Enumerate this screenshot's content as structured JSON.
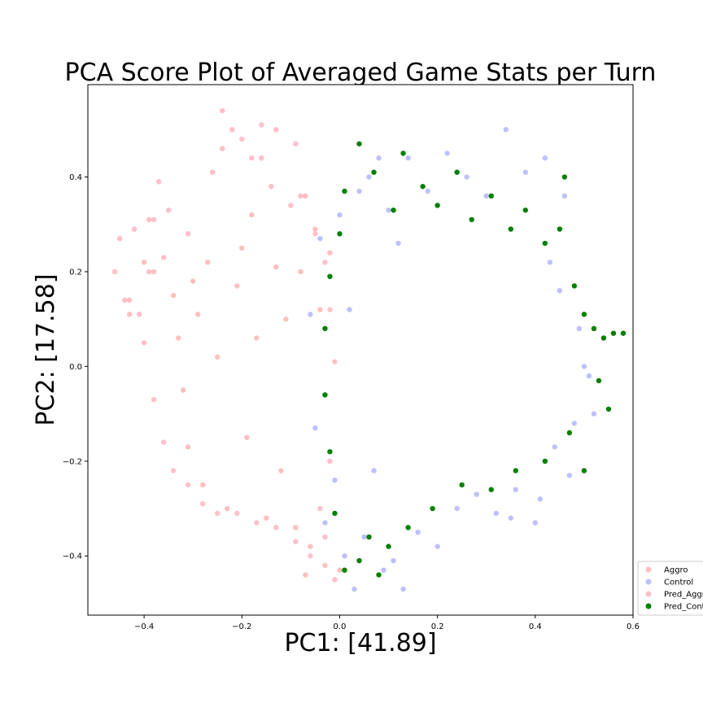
{
  "chart_data": {
    "type": "scatter",
    "title": "PCA Score Plot of Averaged Game Stats per Turn",
    "xlabel": "PC1: [41.89]",
    "ylabel": "PC2: [17.58]",
    "xlim": [
      -0.515,
      0.6
    ],
    "ylim": [
      -0.525,
      0.595
    ],
    "x_ticks": [
      -0.4,
      -0.2,
      0.0,
      0.2,
      0.4,
      0.6
    ],
    "x_tick_labels": [
      "−0.4",
      "−0.2",
      "0.0",
      "0.2",
      "0.4",
      "0.6"
    ],
    "y_ticks": [
      -0.4,
      -0.2,
      0.0,
      0.2,
      0.4
    ],
    "y_tick_labels": [
      "−0.4",
      "−0.2",
      "0.0",
      "0.2",
      "0.4"
    ],
    "grid": false,
    "legend_position": "lower-right, outside the axes",
    "series": [
      {
        "name": "Aggro",
        "color": "#ff0000",
        "alpha": 0.25,
        "points": [
          [
            -0.46,
            0.2
          ],
          [
            -0.45,
            0.27
          ],
          [
            -0.44,
            0.14
          ],
          [
            -0.43,
            0.14
          ],
          [
            -0.42,
            0.29
          ],
          [
            -0.41,
            0.11
          ],
          [
            -0.4,
            0.22
          ],
          [
            -0.39,
            0.31
          ],
          [
            -0.38,
            0.2
          ],
          [
            -0.37,
            0.39
          ],
          [
            -0.36,
            0.23
          ],
          [
            -0.35,
            0.33
          ],
          [
            -0.34,
            0.15
          ],
          [
            -0.33,
            0.06
          ],
          [
            -0.32,
            -0.05
          ],
          [
            -0.31,
            0.28
          ],
          [
            -0.31,
            -0.17
          ],
          [
            -0.3,
            0.18
          ],
          [
            -0.29,
            0.11
          ],
          [
            -0.28,
            -0.25
          ],
          [
            -0.27,
            0.22
          ],
          [
            -0.26,
            0.41
          ],
          [
            -0.25,
            0.02
          ],
          [
            -0.24,
            0.46
          ],
          [
            -0.23,
            -0.3
          ],
          [
            -0.22,
            0.5
          ],
          [
            -0.21,
            0.17
          ],
          [
            -0.2,
            0.25
          ],
          [
            -0.19,
            -0.15
          ],
          [
            -0.18,
            0.32
          ],
          [
            -0.17,
            0.06
          ],
          [
            -0.16,
            0.44
          ],
          [
            -0.15,
            -0.32
          ],
          [
            -0.14,
            0.38
          ],
          [
            -0.13,
            0.21
          ],
          [
            -0.12,
            -0.22
          ],
          [
            -0.11,
            0.1
          ],
          [
            -0.1,
            0.34
          ],
          [
            -0.09,
            -0.34
          ],
          [
            -0.08,
            0.2
          ],
          [
            -0.07,
            0.36
          ],
          [
            -0.06,
            -0.38
          ],
          [
            -0.05,
            0.29
          ],
          [
            -0.04,
            0.12
          ],
          [
            -0.03,
            -0.42
          ],
          [
            -0.02,
            0.24
          ],
          [
            -0.01,
            -0.45
          ],
          [
            0.0,
            -0.43
          ],
          [
            -0.24,
            0.54
          ],
          [
            -0.16,
            0.51
          ],
          [
            -0.13,
            0.5
          ],
          [
            -0.09,
            0.47
          ],
          [
            -0.43,
            0.11
          ],
          [
            -0.07,
            -0.44
          ]
        ]
      },
      {
        "name": "Control",
        "color": "#0000ff",
        "alpha": 0.25,
        "points": [
          [
            -0.06,
            0.11
          ],
          [
            -0.05,
            -0.13
          ],
          [
            -0.04,
            0.27
          ],
          [
            -0.03,
            -0.33
          ],
          [
            -0.02,
            0.19
          ],
          [
            -0.01,
            -0.24
          ],
          [
            0.0,
            0.32
          ],
          [
            0.01,
            -0.4
          ],
          [
            0.02,
            0.12
          ],
          [
            0.03,
            -0.47
          ],
          [
            0.04,
            0.37
          ],
          [
            0.05,
            -0.36
          ],
          [
            0.06,
            0.4
          ],
          [
            0.07,
            -0.22
          ],
          [
            0.08,
            0.44
          ],
          [
            0.09,
            -0.43
          ],
          [
            0.1,
            0.33
          ],
          [
            0.11,
            -0.41
          ],
          [
            0.12,
            0.26
          ],
          [
            0.13,
            -0.47
          ],
          [
            0.14,
            0.44
          ],
          [
            0.16,
            -0.35
          ],
          [
            0.18,
            0.37
          ],
          [
            0.2,
            -0.38
          ],
          [
            0.22,
            0.45
          ],
          [
            0.24,
            -0.3
          ],
          [
            0.26,
            0.4
          ],
          [
            0.28,
            -0.27
          ],
          [
            0.3,
            0.36
          ],
          [
            0.32,
            -0.31
          ],
          [
            0.34,
            0.5
          ],
          [
            0.36,
            -0.26
          ],
          [
            0.38,
            0.41
          ],
          [
            0.4,
            -0.33
          ],
          [
            0.42,
            0.44
          ],
          [
            0.44,
            -0.17
          ],
          [
            0.46,
            0.36
          ],
          [
            0.48,
            -0.12
          ],
          [
            0.5,
            0.0
          ],
          [
            0.52,
            -0.1
          ],
          [
            0.54,
            0.06
          ],
          [
            0.47,
            -0.23
          ],
          [
            0.43,
            0.22
          ],
          [
            0.45,
            0.16
          ],
          [
            0.49,
            0.08
          ],
          [
            0.51,
            -0.02
          ],
          [
            0.41,
            -0.28
          ],
          [
            0.35,
            -0.32
          ]
        ]
      },
      {
        "name": "Pred_Aggro",
        "color": "#ffc0cb",
        "alpha": 1,
        "points": [
          [
            -0.45,
            0.27
          ],
          [
            -0.42,
            0.29
          ],
          [
            -0.38,
            0.31
          ],
          [
            -0.37,
            0.39
          ],
          [
            -0.35,
            0.33
          ],
          [
            -0.31,
            0.28
          ],
          [
            -0.26,
            0.41
          ],
          [
            -0.24,
            0.46
          ],
          [
            -0.22,
            0.5
          ],
          [
            -0.2,
            0.48
          ],
          [
            -0.18,
            0.44
          ],
          [
            -0.16,
            0.44
          ],
          [
            -0.14,
            0.38
          ],
          [
            -0.1,
            0.34
          ],
          [
            -0.08,
            0.36
          ],
          [
            -0.39,
            0.2
          ],
          [
            -0.41,
            0.11
          ],
          [
            -0.4,
            0.05
          ],
          [
            -0.38,
            -0.07
          ],
          [
            -0.36,
            -0.16
          ],
          [
            -0.34,
            -0.22
          ],
          [
            -0.31,
            -0.25
          ],
          [
            -0.28,
            -0.29
          ],
          [
            -0.25,
            -0.31
          ],
          [
            -0.21,
            -0.31
          ],
          [
            -0.17,
            -0.33
          ],
          [
            -0.13,
            -0.34
          ],
          [
            -0.09,
            -0.37
          ],
          [
            -0.06,
            -0.4
          ],
          [
            -0.03,
            -0.36
          ],
          [
            -0.02,
            0.12
          ],
          [
            -0.03,
            0.22
          ],
          [
            -0.05,
            0.28
          ],
          [
            -0.01,
            0.01
          ],
          [
            -0.02,
            -0.2
          ],
          [
            -0.04,
            -0.3
          ],
          [
            -0.09,
            0.47
          ],
          [
            -0.13,
            0.5
          ],
          [
            -0.16,
            0.51
          ],
          [
            -0.24,
            0.54
          ],
          [
            -0.01,
            -0.45
          ],
          [
            -0.46,
            0.2
          ]
        ]
      },
      {
        "name": "Pred_Control",
        "color": "#008000",
        "alpha": 1,
        "points": [
          [
            0.01,
            0.37
          ],
          [
            0.04,
            0.47
          ],
          [
            0.07,
            0.41
          ],
          [
            0.11,
            0.33
          ],
          [
            0.13,
            0.45
          ],
          [
            0.17,
            0.38
          ],
          [
            0.2,
            0.34
          ],
          [
            0.24,
            0.41
          ],
          [
            0.27,
            0.31
          ],
          [
            0.31,
            0.36
          ],
          [
            0.35,
            0.29
          ],
          [
            0.38,
            0.33
          ],
          [
            0.42,
            0.26
          ],
          [
            0.45,
            0.29
          ],
          [
            0.46,
            0.4
          ],
          [
            0.48,
            0.17
          ],
          [
            0.5,
            0.11
          ],
          [
            0.52,
            0.08
          ],
          [
            0.54,
            0.06
          ],
          [
            0.56,
            0.07
          ],
          [
            0.58,
            0.07
          ],
          [
            0.55,
            -0.09
          ],
          [
            0.53,
            -0.03
          ],
          [
            0.5,
            -0.22
          ],
          [
            0.47,
            -0.14
          ],
          [
            0.42,
            -0.2
          ],
          [
            0.36,
            -0.22
          ],
          [
            0.31,
            -0.26
          ],
          [
            0.25,
            -0.25
          ],
          [
            0.19,
            -0.3
          ],
          [
            0.14,
            -0.34
          ],
          [
            0.1,
            -0.38
          ],
          [
            0.08,
            -0.44
          ],
          [
            0.06,
            -0.36
          ],
          [
            0.04,
            -0.41
          ],
          [
            0.01,
            -0.43
          ],
          [
            -0.01,
            -0.31
          ],
          [
            -0.02,
            -0.18
          ],
          [
            -0.03,
            -0.06
          ],
          [
            -0.03,
            0.08
          ],
          [
            -0.02,
            0.19
          ],
          [
            0.0,
            0.28
          ]
        ]
      }
    ]
  }
}
